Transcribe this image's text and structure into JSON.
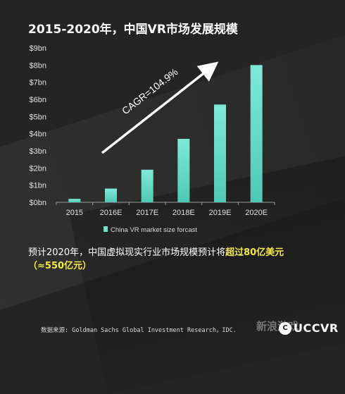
{
  "title": "2015-2020年，中国VR市场发展规模",
  "chart_data": {
    "type": "bar",
    "categories": [
      "2015",
      "2016E",
      "2017E",
      "2018E",
      "2019E",
      "2020E"
    ],
    "series": [
      {
        "name": "China VR market size forcast",
        "values": [
          0.2,
          0.8,
          1.9,
          3.7,
          5.7,
          8.0
        ]
      }
    ],
    "y_ticks": [
      "$0bn",
      "$1bn",
      "$2bn",
      "$3bn",
      "$4bn",
      "$5bn",
      "$6bn",
      "$7bn",
      "$8bn",
      "$9bn"
    ],
    "ylim": [
      0,
      9
    ],
    "annotation": "CAGR=104.9%",
    "legend": "China VR market size forcast",
    "legend_position": "bottom",
    "bar_color": "#6fe0cc",
    "grid": false
  },
  "summary": {
    "prefix": "预计2020年，中国虚拟现实行业市场规模预计将",
    "highlight": "超过80亿美元",
    "line2": "（≈550亿元）"
  },
  "source": "数据来源: Goldman Sachs Global Investment Research，IDC.",
  "watermark": "新浪游戏",
  "logo": {
    "mark": "C",
    "text": "UCCVR"
  },
  "colors": {
    "background": "#242424",
    "accent": "#6fe0cc",
    "highlight": "#f2e84b"
  }
}
